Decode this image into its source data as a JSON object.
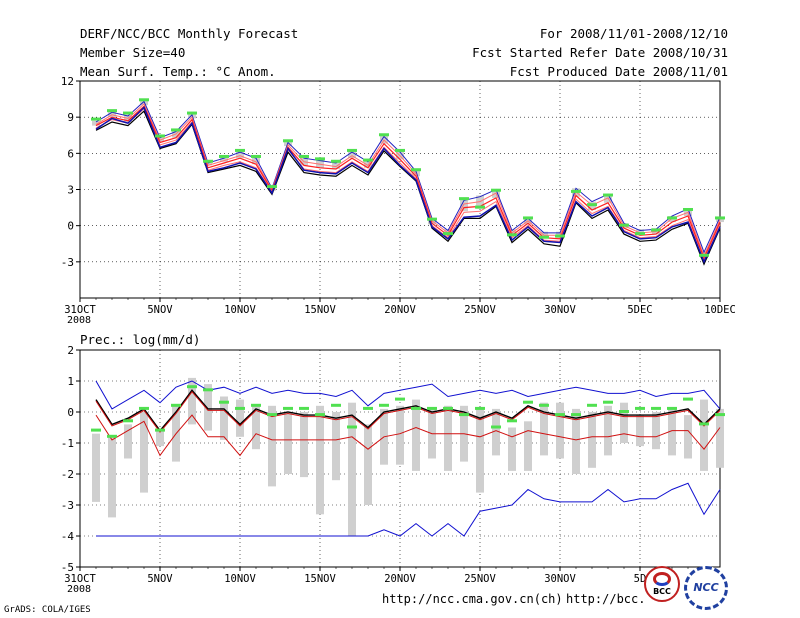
{
  "header": {
    "title": "DERF/NCC/BCC Monthly Forecast",
    "member_size": "Member Size=40",
    "variable": "Mean Surf. Temp.: °C Anom.",
    "period": "For 2008/11/01-2008/12/10",
    "started": "Fcst Started Refer Date 2008/10/31",
    "produced": "Fcst Produced Date 2008/11/01"
  },
  "footer": {
    "credit": "GrADS: COLA/IGES",
    "url1": "http://ncc.cma.gov.cn(ch)",
    "url2": "http://bcc.",
    "logo1": "BCC",
    "logo2": "NCC"
  },
  "colors": {
    "mean": "#ff3030",
    "member_box": "#b8b8b8",
    "marker": "#50e050",
    "prec_blue": "#1010d0",
    "prec_red": "#d01010"
  },
  "chart_data": [
    {
      "type": "line",
      "title": "Mean Surf. Temp.: °C Anom.",
      "x_ticks": [
        "31OCT",
        "5NOV",
        "10NOV",
        "15NOV",
        "20NOV",
        "25NOV",
        "30NOV",
        "5DEC",
        "10DEC"
      ],
      "x_tick_days": [
        0,
        5,
        10,
        15,
        20,
        25,
        30,
        35,
        40
      ],
      "year_label": "2008",
      "ylim": [
        -6,
        12
      ],
      "yticks": [
        -3,
        0,
        3,
        6,
        9,
        12
      ],
      "days": [
        1,
        2,
        3,
        4,
        5,
        6,
        7,
        8,
        9,
        10,
        11,
        12,
        13,
        14,
        15,
        16,
        17,
        18,
        19,
        20,
        21,
        22,
        23,
        24,
        25,
        26,
        27,
        28,
        29,
        30,
        31,
        32,
        33,
        34,
        35,
        36,
        37,
        38,
        39,
        40
      ],
      "series": [
        {
          "name": "max",
          "values": [
            8.6,
            9.4,
            9.1,
            10.3,
            7.3,
            7.8,
            9.2,
            5.2,
            5.6,
            6.1,
            5.6,
            3.1,
            6.9,
            5.6,
            5.4,
            5.2,
            6.1,
            5.3,
            7.4,
            6.1,
            4.5,
            0.6,
            -0.4,
            2.1,
            2.4,
            3.0,
            -0.4,
            0.6,
            -0.6,
            -0.6,
            3.1,
            2.0,
            2.6,
            0.2,
            -0.4,
            -0.3,
            0.8,
            1.4,
            -2.2,
            0.7
          ]
        },
        {
          "name": "upper",
          "values": [
            8.4,
            9.2,
            8.9,
            10.1,
            7.1,
            7.6,
            9.0,
            5.0,
            5.4,
            5.8,
            5.3,
            3.0,
            6.7,
            5.3,
            5.1,
            4.9,
            5.8,
            5.0,
            7.1,
            5.8,
            4.3,
            0.4,
            -0.6,
            1.8,
            2.0,
            2.7,
            -0.6,
            0.4,
            -0.8,
            -0.8,
            2.8,
            1.7,
            2.3,
            0.0,
            -0.6,
            -0.5,
            0.6,
            1.1,
            -2.5,
            0.5
          ]
        },
        {
          "name": "mean",
          "values": [
            8.3,
            9.0,
            8.7,
            9.9,
            6.9,
            7.3,
            8.8,
            4.8,
            5.2,
            5.6,
            5.1,
            2.9,
            6.5,
            5.0,
            4.8,
            4.7,
            5.6,
            4.8,
            6.8,
            5.5,
            4.1,
            0.2,
            -0.8,
            1.5,
            1.6,
            2.3,
            -0.8,
            0.2,
            -1.0,
            -1.1,
            2.5,
            1.3,
            1.9,
            -0.2,
            -0.8,
            -0.7,
            0.3,
            0.8,
            -2.7,
            0.3
          ]
        },
        {
          "name": "lower",
          "values": [
            8.1,
            8.8,
            8.5,
            9.7,
            6.7,
            7.1,
            8.6,
            4.6,
            5.0,
            5.3,
            4.8,
            2.8,
            6.3,
            4.7,
            4.5,
            4.4,
            5.3,
            4.5,
            6.5,
            5.2,
            3.9,
            0.0,
            -1.0,
            1.1,
            1.2,
            2.0,
            -1.0,
            0.0,
            -1.2,
            -1.3,
            2.2,
            1.0,
            1.6,
            -0.4,
            -1.0,
            -0.9,
            0.0,
            0.5,
            -2.9,
            0.1
          ]
        },
        {
          "name": "min",
          "values": [
            7.9,
            8.6,
            8.3,
            9.5,
            6.4,
            6.8,
            8.4,
            4.4,
            4.7,
            5.0,
            4.5,
            2.6,
            6.1,
            4.4,
            4.2,
            4.1,
            5.0,
            4.2,
            6.2,
            4.9,
            3.7,
            -0.2,
            -1.3,
            0.6,
            0.6,
            1.6,
            -1.4,
            -0.3,
            -1.5,
            -1.7,
            1.9,
            0.6,
            1.3,
            -0.7,
            -1.3,
            -1.2,
            -0.3,
            0.2,
            -3.2,
            -0.2
          ]
        },
        {
          "name": "black",
          "values": [
            8.0,
            8.9,
            8.5,
            9.8,
            6.5,
            6.9,
            8.5,
            4.5,
            4.8,
            5.2,
            4.7,
            2.7,
            6.4,
            4.6,
            4.4,
            4.3,
            5.2,
            4.4,
            6.4,
            5.0,
            3.8,
            -0.1,
            -1.1,
            0.7,
            0.8,
            1.7,
            -1.2,
            -0.1,
            -1.3,
            -1.4,
            2.0,
            0.8,
            1.5,
            -0.5,
            -1.1,
            -1.0,
            -0.1,
            0.3,
            -3.0,
            -0.1
          ]
        }
      ],
      "markers": [
        8.8,
        9.5,
        9.3,
        10.4,
        7.4,
        7.9,
        9.3,
        5.3,
        5.7,
        6.2,
        5.7,
        3.2,
        7.0,
        5.7,
        5.5,
        5.3,
        6.2,
        5.4,
        7.5,
        6.2,
        4.6,
        0.5,
        -0.7,
        2.2,
        1.5,
        2.9,
        -0.8,
        0.6,
        -1.0,
        -0.9,
        2.8,
        1.7,
        2.5,
        0.0,
        -0.7,
        -0.4,
        0.6,
        1.3,
        -2.5,
        0.6
      ],
      "member_bars": [
        [
          8.3,
          8.7
        ],
        [
          9.0,
          9.5
        ],
        [
          8.6,
          9.2
        ],
        [
          10.0,
          10.4
        ],
        [
          7.0,
          7.4
        ],
        [
          7.3,
          7.9
        ],
        [
          8.9,
          9.3
        ],
        [
          5.0,
          5.3
        ],
        [
          5.3,
          5.7
        ],
        [
          5.6,
          6.2
        ],
        [
          5.1,
          5.7
        ],
        [
          2.9,
          3.2
        ],
        [
          6.6,
          7.0
        ],
        [
          5.0,
          5.7
        ],
        [
          4.8,
          5.5
        ],
        [
          4.7,
          5.3
        ],
        [
          5.6,
          6.2
        ],
        [
          4.8,
          5.4
        ],
        [
          6.8,
          7.5
        ],
        [
          5.5,
          6.2
        ],
        [
          4.1,
          4.6
        ],
        [
          0.1,
          0.6
        ],
        [
          -0.9,
          -0.3
        ],
        [
          1.2,
          2.2
        ],
        [
          1.4,
          2.5
        ],
        [
          2.3,
          3.0
        ],
        [
          -0.9,
          -0.3
        ],
        [
          0.1,
          0.6
        ],
        [
          -1.0,
          -0.5
        ],
        [
          -1.1,
          -0.5
        ],
        [
          2.4,
          3.1
        ],
        [
          1.3,
          2.0
        ],
        [
          1.9,
          2.6
        ],
        [
          -0.2,
          0.2
        ],
        [
          -0.8,
          -0.3
        ],
        [
          -0.7,
          -0.2
        ],
        [
          0.3,
          0.8
        ],
        [
          0.8,
          1.4
        ],
        [
          -2.7,
          -2.1
        ],
        [
          0.3,
          0.7
        ]
      ]
    },
    {
      "type": "line",
      "title": "Prec.: log(mm/d)",
      "x_ticks": [
        "31OCT",
        "5NOV",
        "10NOV",
        "15NOV",
        "20NOV",
        "25NOV",
        "30NOV",
        "5D"
      ],
      "x_tick_days": [
        0,
        5,
        10,
        15,
        20,
        25,
        30,
        35
      ],
      "year_label": "2008",
      "ylim": [
        -5,
        2
      ],
      "yticks": [
        -5,
        -4,
        -3,
        -2,
        -1,
        0,
        1,
        2
      ],
      "days": [
        1,
        2,
        3,
        4,
        5,
        6,
        7,
        8,
        9,
        10,
        11,
        12,
        13,
        14,
        15,
        16,
        17,
        18,
        19,
        20,
        21,
        22,
        23,
        24,
        25,
        26,
        27,
        28,
        29,
        30,
        31,
        32,
        33,
        34,
        35,
        36,
        37,
        38,
        39,
        40
      ],
      "series": [
        {
          "name": "max",
          "values": [
            1.0,
            0.1,
            0.4,
            0.7,
            0.3,
            0.8,
            1.0,
            0.7,
            0.8,
            0.6,
            0.8,
            0.6,
            0.7,
            0.6,
            0.6,
            0.5,
            0.7,
            0.2,
            0.6,
            0.7,
            0.8,
            0.9,
            0.5,
            0.6,
            0.7,
            0.6,
            0.7,
            0.5,
            0.6,
            0.7,
            0.8,
            0.7,
            0.6,
            0.6,
            0.7,
            0.5,
            0.6,
            0.6,
            0.7,
            0.1
          ]
        },
        {
          "name": "mean",
          "values": [
            0.4,
            -0.4,
            -0.2,
            0.1,
            -0.6,
            0.0,
            0.7,
            0.1,
            0.1,
            -0.4,
            0.1,
            -0.1,
            0.0,
            -0.1,
            -0.1,
            -0.2,
            -0.1,
            -0.5,
            0.0,
            0.1,
            0.2,
            0.0,
            0.1,
            0.0,
            -0.2,
            0.0,
            -0.2,
            0.2,
            0.0,
            -0.1,
            -0.2,
            -0.1,
            0.0,
            -0.1,
            -0.1,
            -0.1,
            0.0,
            0.1,
            -0.4,
            0.1
          ]
        },
        {
          "name": "min",
          "values": [
            -0.1,
            -0.9,
            -0.6,
            -0.3,
            -1.4,
            -0.7,
            -0.1,
            -0.8,
            -0.8,
            -1.4,
            -0.7,
            -0.9,
            -0.9,
            -0.9,
            -0.9,
            -0.9,
            -0.8,
            -1.2,
            -0.8,
            -0.7,
            -0.5,
            -0.7,
            -0.7,
            -0.7,
            -0.8,
            -0.6,
            -0.8,
            -0.6,
            -0.7,
            -0.8,
            -0.9,
            -0.8,
            -0.8,
            -0.7,
            -0.8,
            -0.8,
            -0.6,
            -0.6,
            -1.2,
            -0.5
          ]
        },
        {
          "name": "floor",
          "values": [
            -4.0,
            -4.0,
            -4.0,
            -4.0,
            -4.0,
            -4.0,
            -4.0,
            -4.0,
            -4.0,
            -4.0,
            -4.0,
            -4.0,
            -4.0,
            -4.0,
            -4.0,
            -4.0,
            -4.0,
            -4.0,
            -3.8,
            -4.0,
            -3.6,
            -4.0,
            -3.6,
            -4.0,
            -3.2,
            -3.1,
            -3.0,
            -2.5,
            -2.8,
            -2.9,
            -2.9,
            -2.9,
            -2.5,
            -2.9,
            -2.8,
            -2.8,
            -2.5,
            -2.3,
            -3.3,
            -2.5
          ]
        }
      ],
      "markers": [
        -0.6,
        -0.8,
        -0.3,
        0.1,
        -0.6,
        0.2,
        0.8,
        0.7,
        0.3,
        0.1,
        0.2,
        -0.1,
        0.1,
        0.1,
        -0.1,
        0.2,
        -0.5,
        0.1,
        0.2,
        0.4,
        0.1,
        0.1,
        0.1,
        -0.1,
        0.1,
        -0.5,
        -0.3,
        0.3,
        0.2,
        -0.1,
        -0.1,
        0.2,
        0.3,
        0.0,
        0.1,
        0.1,
        0.1,
        0.4,
        -0.4,
        -0.1
      ],
      "member_bars": [
        [
          -2.9,
          -0.7
        ],
        [
          -3.4,
          -0.8
        ],
        [
          -1.5,
          -0.4
        ],
        [
          -2.6,
          0.0
        ],
        [
          -1.1,
          -0.6
        ],
        [
          -1.6,
          0.2
        ],
        [
          -0.4,
          1.1
        ],
        [
          -0.6,
          0.9
        ],
        [
          -0.9,
          0.5
        ],
        [
          -0.8,
          0.4
        ],
        [
          -1.2,
          0.2
        ],
        [
          -2.4,
          0.2
        ],
        [
          -2.0,
          0.0
        ],
        [
          -2.1,
          0.0
        ],
        [
          -3.3,
          0.2
        ],
        [
          -2.2,
          0.0
        ],
        [
          -4.0,
          0.3
        ],
        [
          -3.0,
          -0.4
        ],
        [
          -1.7,
          0.1
        ],
        [
          -1.7,
          0.2
        ],
        [
          -1.9,
          0.4
        ],
        [
          -1.5,
          0.1
        ],
        [
          -1.9,
          0.2
        ],
        [
          -1.6,
          0.2
        ],
        [
          -2.6,
          0.1
        ],
        [
          -1.4,
          0.1
        ],
        [
          -1.9,
          -0.5
        ],
        [
          -1.9,
          -0.3
        ],
        [
          -1.4,
          0.3
        ],
        [
          -1.5,
          0.3
        ],
        [
          -2.0,
          0.1
        ],
        [
          -1.8,
          0.0
        ],
        [
          -1.4,
          0.2
        ],
        [
          -1.0,
          0.3
        ],
        [
          -1.1,
          -0.1
        ],
        [
          -1.2,
          0.0
        ],
        [
          -1.4,
          0.1
        ],
        [
          -1.5,
          -0.1
        ],
        [
          -1.9,
          0.4
        ],
        [
          -1.8,
          0.1
        ]
      ]
    }
  ]
}
